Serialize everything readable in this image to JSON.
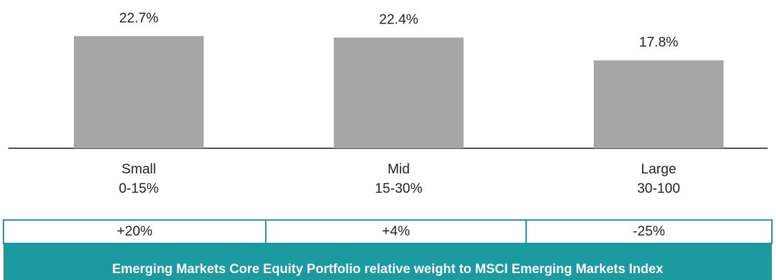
{
  "chart_data": {
    "type": "bar",
    "categories": [
      "Small",
      "Mid",
      "Large"
    ],
    "category_ranges": [
      "0-15%",
      "15-30%",
      "30-100"
    ],
    "values": [
      22.7,
      22.4,
      17.8
    ],
    "value_labels": [
      "22.7%",
      "22.4%",
      "17.8%"
    ],
    "color": "#a6a6a6",
    "ylim": [
      0,
      30
    ]
  },
  "table": {
    "cells": [
      "+20%",
      "+4%",
      "-25%"
    ],
    "caption": "Emerging Markets Core Equity Portfolio relative weight to MSCI Emerging Markets Index",
    "color": "#1b9aa0"
  }
}
